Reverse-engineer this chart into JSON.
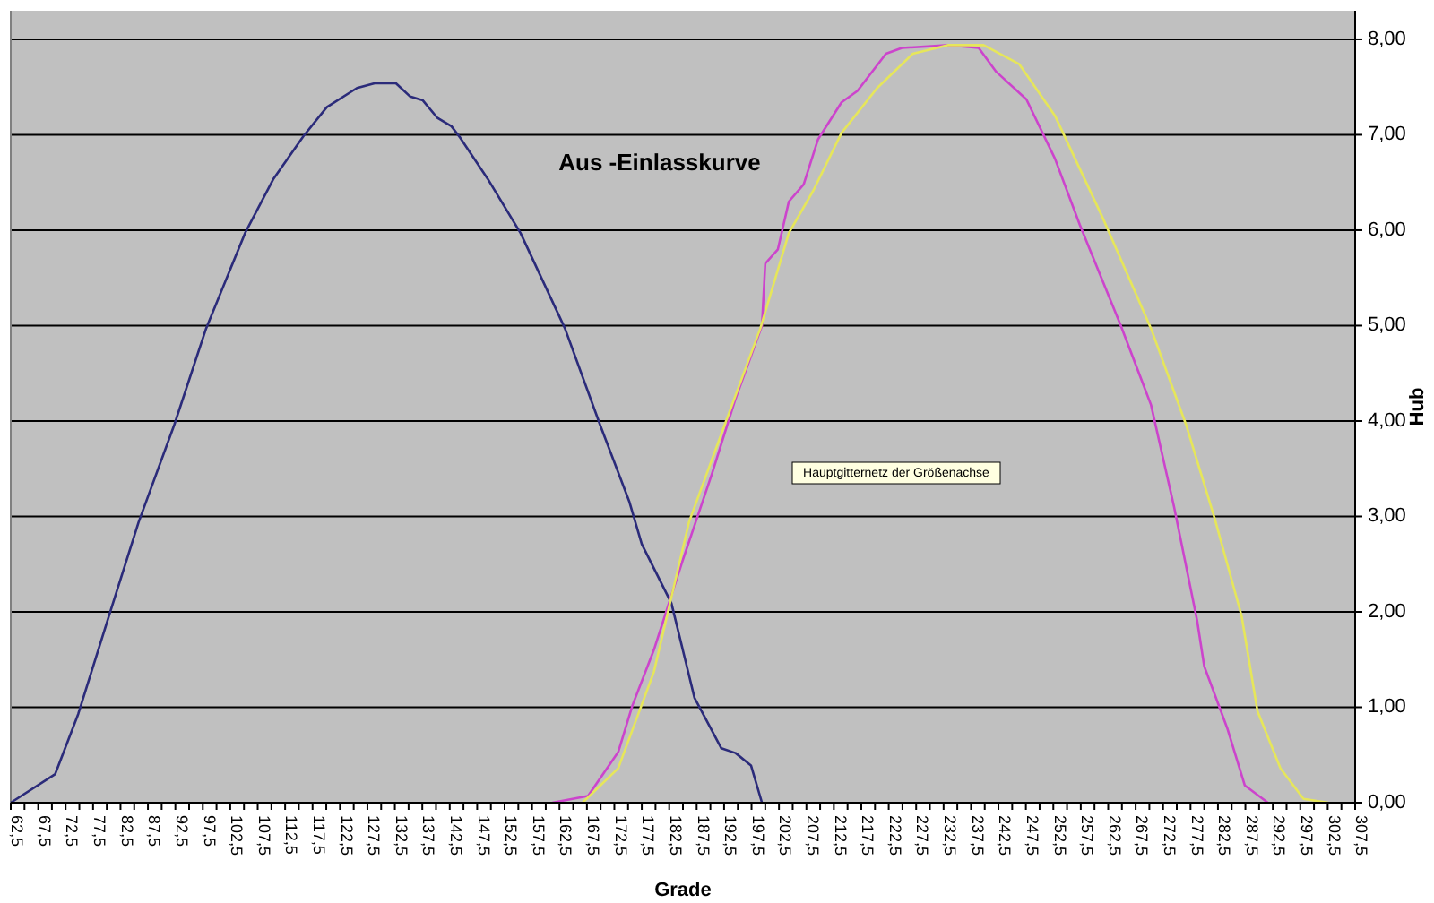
{
  "chart_data": {
    "type": "line",
    "title": "Aus -Einlasskurve",
    "xlabel": "Grade",
    "y2label": "Hub",
    "annotations": [
      "Hauptgitternetz der Größenachse"
    ],
    "xlim": [
      62.5,
      307.5
    ],
    "xticks": [
      {
        "value": 62.5,
        "label": "62,5"
      },
      {
        "value": 65,
        "label": null
      },
      {
        "value": 67.5,
        "label": "67,5"
      },
      {
        "value": 70,
        "label": null
      },
      {
        "value": 72.5,
        "label": "72,5"
      },
      {
        "value": 75,
        "label": null
      },
      {
        "value": 77.5,
        "label": "77,5"
      },
      {
        "value": 80,
        "label": null
      },
      {
        "value": 82.5,
        "label": "82,5"
      },
      {
        "value": 85,
        "label": null
      },
      {
        "value": 87.5,
        "label": "87,5"
      },
      {
        "value": 90,
        "label": null
      },
      {
        "value": 92.5,
        "label": "92,5"
      },
      {
        "value": 95,
        "label": null
      },
      {
        "value": 97.5,
        "label": "97,5"
      },
      {
        "value": 100,
        "label": null
      },
      {
        "value": 102.5,
        "label": "102,5"
      },
      {
        "value": 105,
        "label": null
      },
      {
        "value": 107.5,
        "label": "107,5"
      },
      {
        "value": 110,
        "label": null
      },
      {
        "value": 112.5,
        "label": "112,5"
      },
      {
        "value": 115,
        "label": null
      },
      {
        "value": 117.5,
        "label": "117,5"
      },
      {
        "value": 120,
        "label": null
      },
      {
        "value": 122.5,
        "label": "122,5"
      },
      {
        "value": 125,
        "label": null
      },
      {
        "value": 127.5,
        "label": "127,5"
      },
      {
        "value": 130,
        "label": null
      },
      {
        "value": 132.5,
        "label": "132,5"
      },
      {
        "value": 135,
        "label": null
      },
      {
        "value": 137.5,
        "label": "137,5"
      },
      {
        "value": 140,
        "label": null
      },
      {
        "value": 142.5,
        "label": "142,5"
      },
      {
        "value": 145,
        "label": null
      },
      {
        "value": 147.5,
        "label": "147,5"
      },
      {
        "value": 150,
        "label": null
      },
      {
        "value": 152.5,
        "label": "152,5"
      },
      {
        "value": 155,
        "label": null
      },
      {
        "value": 157.5,
        "label": "157,5"
      },
      {
        "value": 160,
        "label": null
      },
      {
        "value": 162.5,
        "label": "162,5"
      },
      {
        "value": 165,
        "label": null
      },
      {
        "value": 167.5,
        "label": "167,5"
      },
      {
        "value": 170,
        "label": null
      },
      {
        "value": 172.5,
        "label": "172,5"
      },
      {
        "value": 175,
        "label": null
      },
      {
        "value": 177.5,
        "label": "177,5"
      },
      {
        "value": 180,
        "label": null
      },
      {
        "value": 182.5,
        "label": "182,5"
      },
      {
        "value": 185,
        "label": null
      },
      {
        "value": 187.5,
        "label": "187,5"
      },
      {
        "value": 190,
        "label": null
      },
      {
        "value": 192.5,
        "label": "192,5"
      },
      {
        "value": 195,
        "label": null
      },
      {
        "value": 197.5,
        "label": "197,5"
      },
      {
        "value": 200,
        "label": null
      },
      {
        "value": 202.5,
        "label": "202,5"
      },
      {
        "value": 205,
        "label": null
      },
      {
        "value": 207.5,
        "label": "207,5"
      },
      {
        "value": 210,
        "label": null
      },
      {
        "value": 212.5,
        "label": "212,5"
      },
      {
        "value": 215,
        "label": null
      },
      {
        "value": 217.5,
        "label": "217,5"
      },
      {
        "value": 220,
        "label": null
      },
      {
        "value": 222.5,
        "label": "222,5"
      },
      {
        "value": 225,
        "label": null
      },
      {
        "value": 227.5,
        "label": "227,5"
      },
      {
        "value": 230,
        "label": null
      },
      {
        "value": 232.5,
        "label": "232,5"
      },
      {
        "value": 235,
        "label": null
      },
      {
        "value": 237.5,
        "label": "237,5"
      },
      {
        "value": 240,
        "label": null
      },
      {
        "value": 242.5,
        "label": "242,5"
      },
      {
        "value": 245,
        "label": null
      },
      {
        "value": 247.5,
        "label": "247,5"
      },
      {
        "value": 250,
        "label": null
      },
      {
        "value": 252.5,
        "label": "252,5"
      },
      {
        "value": 255,
        "label": null
      },
      {
        "value": 257.5,
        "label": "257,5"
      },
      {
        "value": 260,
        "label": null
      },
      {
        "value": 262.5,
        "label": "262,5"
      },
      {
        "value": 265,
        "label": null
      },
      {
        "value": 267.5,
        "label": "267,5"
      },
      {
        "value": 270,
        "label": null
      },
      {
        "value": 272.5,
        "label": "272,5"
      },
      {
        "value": 275,
        "label": null
      },
      {
        "value": 277.5,
        "label": "277,5"
      },
      {
        "value": 280,
        "label": null
      },
      {
        "value": 282.5,
        "label": "282,5"
      },
      {
        "value": 285,
        "label": null
      },
      {
        "value": 287.5,
        "label": "287,5"
      },
      {
        "value": 290,
        "label": null
      },
      {
        "value": 292.5,
        "label": "292,5"
      },
      {
        "value": 295,
        "label": null
      },
      {
        "value": 297.5,
        "label": "297,5"
      },
      {
        "value": 300,
        "label": null
      },
      {
        "value": 302.5,
        "label": "302,5"
      },
      {
        "value": 305,
        "label": null
      },
      {
        "value": 307.5,
        "label": "307,5"
      }
    ],
    "y2lim": [
      0,
      8.3
    ],
    "y2ticks": [
      {
        "value": 0,
        "label": "0,00"
      },
      {
        "value": 1,
        "label": "1,00"
      },
      {
        "value": 2,
        "label": "2,00"
      },
      {
        "value": 3,
        "label": "3,00"
      },
      {
        "value": 4,
        "label": "4,00"
      },
      {
        "value": 5,
        "label": "5,00"
      },
      {
        "value": 6,
        "label": "6,00"
      },
      {
        "value": 7,
        "label": "7,00"
      },
      {
        "value": 8,
        "label": "8,00"
      }
    ],
    "grid": "y",
    "marker": "none",
    "line_style": "solid",
    "series": [
      {
        "color": "#2b2b7a",
        "axis": "y2",
        "x": [
          62.5,
          70.6,
          74.8,
          80.3,
          85.8,
          92.3,
          98.1,
          105.2,
          110.4,
          115.9,
          120.1,
          125.6,
          128.8,
          132.7,
          135.3,
          137.6,
          140.2,
          142.8,
          144.4,
          149.4,
          155.4,
          163.5,
          169.9,
          175.2,
          177.5,
          182.9,
          187.1,
          192,
          194.6,
          197.4,
          199.4
        ],
        "values": [
          0,
          0.3,
          0.93,
          1.94,
          2.94,
          3.96,
          4.97,
          5.97,
          6.54,
          6.99,
          7.29,
          7.49,
          7.54,
          7.54,
          7.4,
          7.36,
          7.18,
          7.09,
          6.97,
          6.54,
          5.97,
          4.97,
          3.96,
          3.16,
          2.71,
          2.09,
          1.1,
          0.57,
          0.52,
          0.39,
          0
        ]
      },
      {
        "color": "#cc44cc",
        "axis": "y2",
        "x": [
          161.2,
          167.7,
          173.2,
          175.8,
          179.7,
          184.9,
          190.3,
          194.5,
          199.4,
          200,
          202.3,
          204.3,
          207,
          209.6,
          213.9,
          216.8,
          222,
          224.9,
          233.4,
          238.9,
          242.1,
          247.6,
          252.8,
          257.3,
          264.8,
          270.3,
          274.5,
          278.7,
          280,
          284.2,
          287.4,
          291.6
        ],
        "values": [
          0,
          0.07,
          0.53,
          1.02,
          1.6,
          2.53,
          3.45,
          4.22,
          5,
          5.65,
          5.8,
          6.3,
          6.48,
          6.95,
          7.34,
          7.46,
          7.85,
          7.91,
          7.94,
          7.91,
          7.66,
          7.37,
          6.75,
          6.06,
          5,
          4.17,
          3.1,
          1.91,
          1.43,
          0.78,
          0.18,
          0
        ]
      },
      {
        "color": "#e6e65a",
        "axis": "y2",
        "x": [
          166.7,
          173.2,
          179.7,
          186.1,
          192.6,
          199.1,
          204.3,
          208.8,
          213.9,
          220.4,
          226.9,
          233.4,
          239.8,
          246.3,
          252.8,
          261.5,
          270.3,
          276.7,
          281.9,
          286.8,
          289.7,
          293.9,
          298.1,
          302.6
        ],
        "values": [
          0,
          0.36,
          1.37,
          2.94,
          3.96,
          4.97,
          5.97,
          6.42,
          7.02,
          7.49,
          7.85,
          7.94,
          7.94,
          7.74,
          7.2,
          6.13,
          4.97,
          3.96,
          2.98,
          1.96,
          0.96,
          0.36,
          0.04,
          0
        ]
      }
    ]
  }
}
